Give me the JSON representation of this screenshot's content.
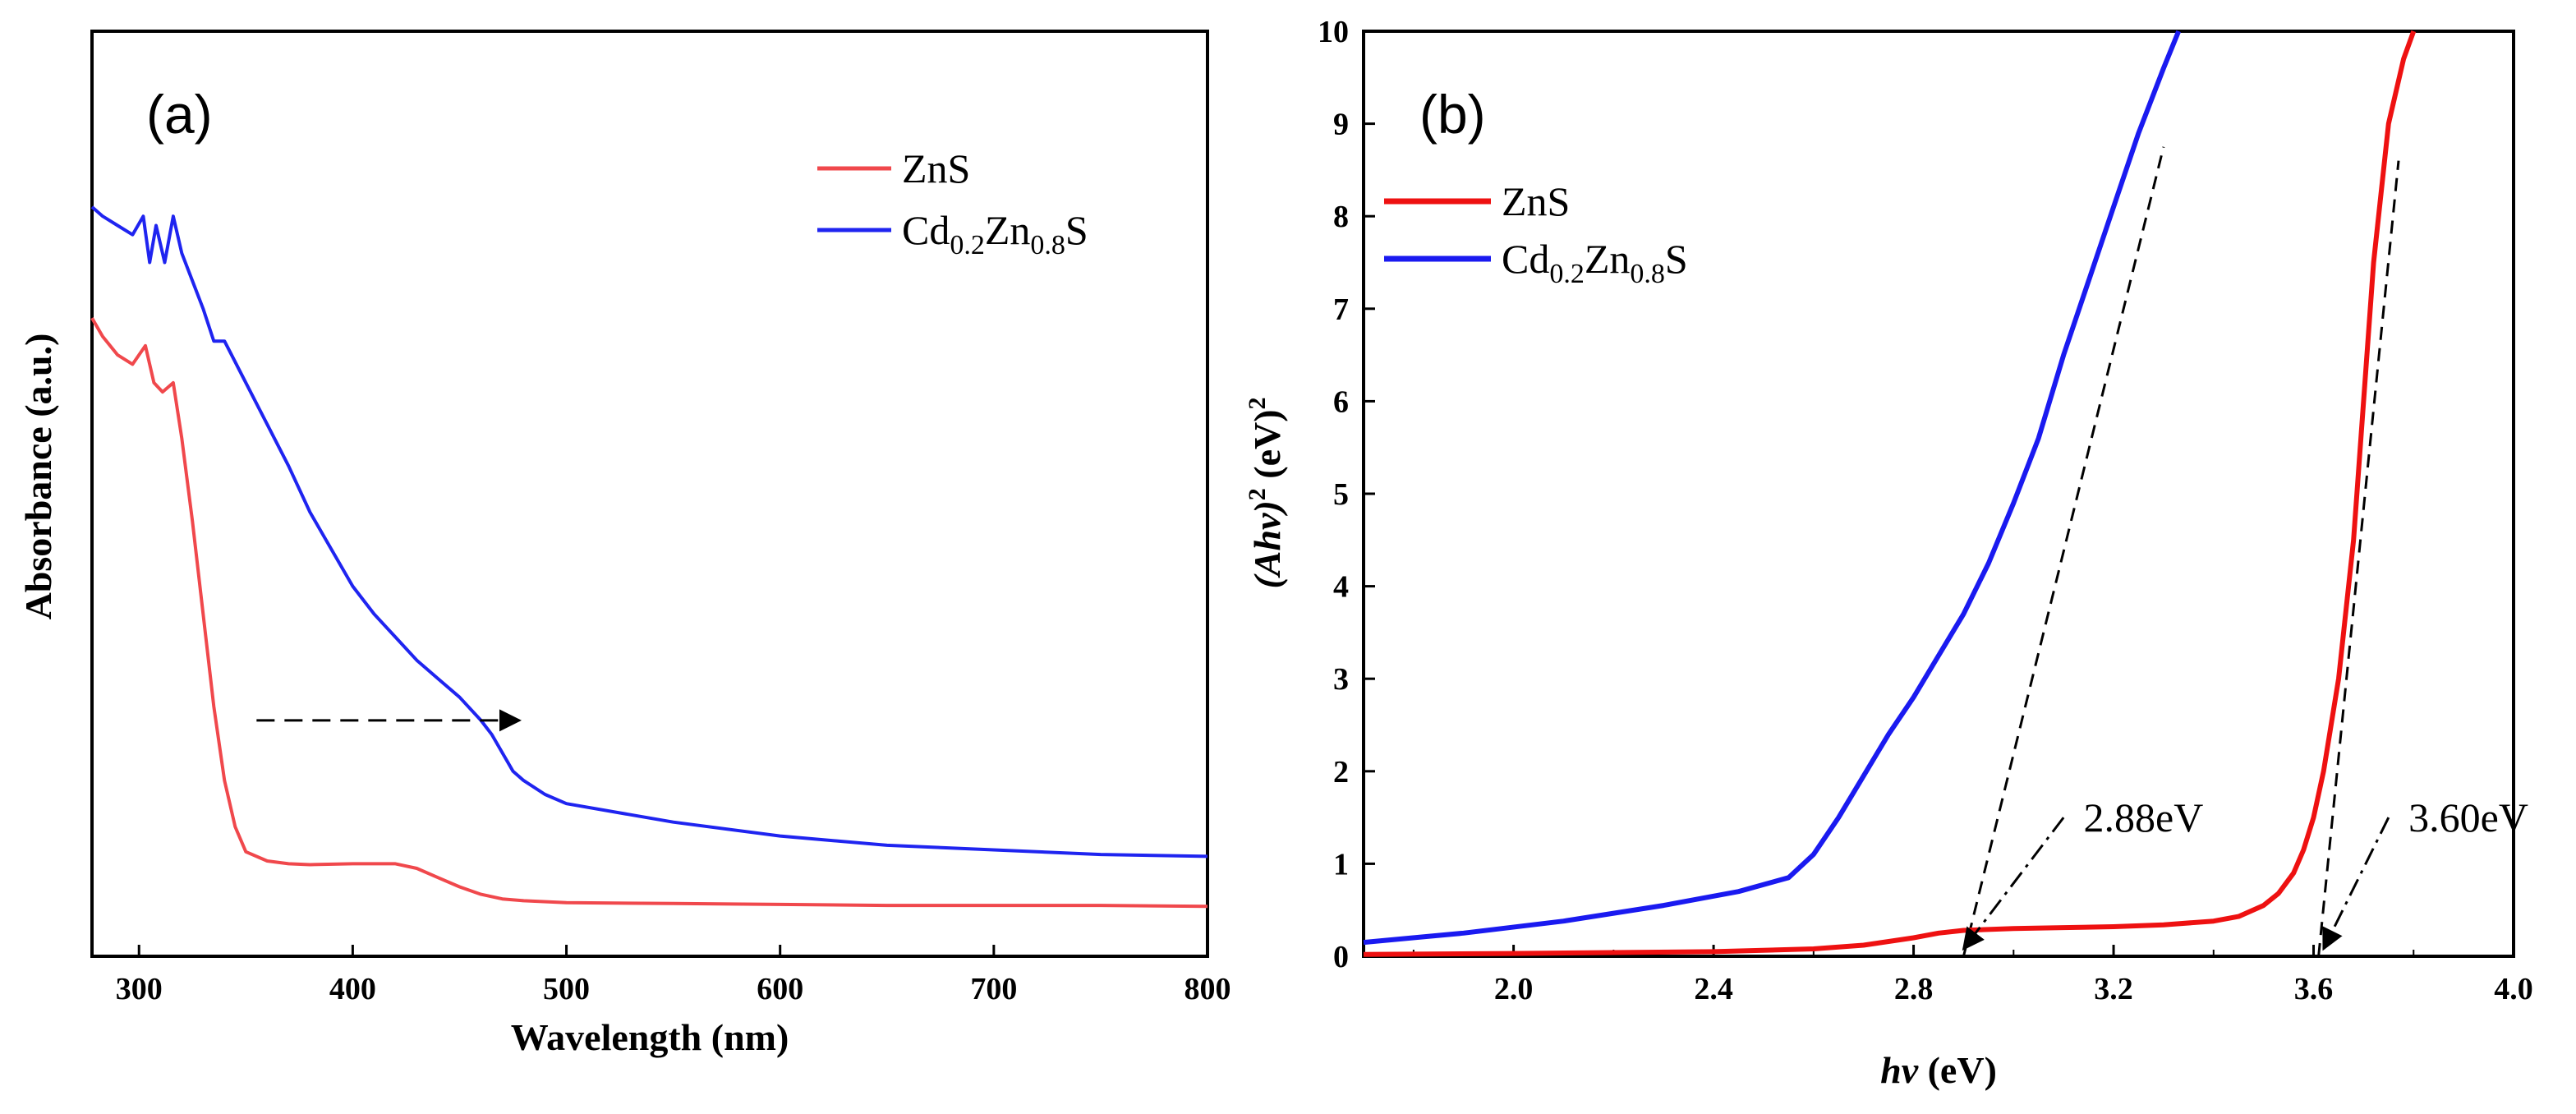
{
  "chart_data": [
    {
      "panel_label": "(a)",
      "type": "line",
      "title": "",
      "xlabel": "Wavelength (nm)",
      "ylabel": "Absorbance (a.u.)",
      "xlim": [
        278,
        800
      ],
      "ylim": [
        0,
        1.0
      ],
      "x_ticks": [
        "300",
        "400",
        "500",
        "600",
        "700",
        "800"
      ],
      "y_ticks_shown": false,
      "legend_position": "top-right",
      "series": [
        {
          "name": "ZnS",
          "color": "#f0484c",
          "x": [
            278,
            283,
            290,
            297,
            303,
            307,
            311,
            316,
            320,
            325,
            330,
            335,
            340,
            345,
            350,
            360,
            370,
            380,
            400,
            420,
            430,
            440,
            450,
            460,
            470,
            480,
            500,
            550,
            600,
            650,
            700,
            750,
            800
          ],
          "y": [
            0.69,
            0.67,
            0.65,
            0.64,
            0.66,
            0.62,
            0.61,
            0.62,
            0.56,
            0.47,
            0.37,
            0.27,
            0.19,
            0.14,
            0.113,
            0.103,
            0.1,
            0.099,
            0.1,
            0.1,
            0.095,
            0.085,
            0.075,
            0.067,
            0.062,
            0.06,
            0.058,
            0.057,
            0.056,
            0.055,
            0.055,
            0.055,
            0.054
          ]
        },
        {
          "name": "Cd0.2Zn0.8S",
          "color": "#1f24f0",
          "x": [
            278,
            283,
            290,
            297,
            302,
            305,
            308,
            312,
            316,
            320,
            325,
            330,
            335,
            340,
            350,
            360,
            370,
            380,
            390,
            400,
            410,
            420,
            430,
            440,
            450,
            460,
            465,
            470,
            475,
            480,
            490,
            500,
            550,
            600,
            650,
            700,
            750,
            800
          ],
          "y": [
            0.81,
            0.8,
            0.79,
            0.78,
            0.8,
            0.75,
            0.79,
            0.75,
            0.8,
            0.76,
            0.73,
            0.7,
            0.665,
            0.665,
            0.62,
            0.575,
            0.53,
            0.48,
            0.44,
            0.4,
            0.37,
            0.345,
            0.32,
            0.3,
            0.28,
            0.255,
            0.24,
            0.22,
            0.2,
            0.19,
            0.175,
            0.165,
            0.145,
            0.13,
            0.12,
            0.115,
            0.11,
            0.108
          ]
        }
      ],
      "annotations": [
        {
          "type": "dashed-arrow",
          "from": [
            355,
            0.255
          ],
          "to": [
            478,
            0.255
          ]
        }
      ]
    },
    {
      "panel_label": "(b)",
      "type": "line",
      "title": "",
      "xlabel_main": "hv",
      "xlabel_unit": " (eV)",
      "ylabel_main": "(Ahv)",
      "ylabel_unit": " (eV)",
      "ylabel_superscript": "2",
      "xlim": [
        1.7,
        4.0
      ],
      "ylim": [
        0,
        10
      ],
      "x_ticks": [
        "2.0",
        "2.4",
        "2.8",
        "3.2",
        "3.6",
        "4.0"
      ],
      "y_ticks": [
        "0",
        "1",
        "2",
        "3",
        "4",
        "5",
        "6",
        "7",
        "8",
        "9",
        "10"
      ],
      "legend_position": "upper-left",
      "series": [
        {
          "name": "ZnS",
          "color": "#ee1111",
          "x": [
            1.7,
            2.0,
            2.4,
            2.6,
            2.7,
            2.8,
            2.85,
            2.9,
            3.0,
            3.1,
            3.2,
            3.3,
            3.4,
            3.45,
            3.5,
            3.53,
            3.56,
            3.58,
            3.6,
            3.62,
            3.65,
            3.68,
            3.7,
            3.72,
            3.75,
            3.78,
            3.8
          ],
          "y": [
            0.02,
            0.03,
            0.05,
            0.08,
            0.12,
            0.2,
            0.25,
            0.28,
            0.3,
            0.31,
            0.32,
            0.34,
            0.38,
            0.43,
            0.55,
            0.68,
            0.9,
            1.15,
            1.5,
            2.0,
            3.0,
            4.5,
            6.0,
            7.5,
            9.0,
            9.7,
            10.0
          ]
        },
        {
          "name": "Cd0.2Zn0.8S",
          "color": "#1a1af0",
          "x": [
            1.7,
            1.9,
            2.1,
            2.3,
            2.45,
            2.55,
            2.6,
            2.65,
            2.7,
            2.75,
            2.8,
            2.85,
            2.9,
            2.95,
            3.0,
            3.05,
            3.1,
            3.15,
            3.2,
            3.25,
            3.3,
            3.33
          ],
          "y": [
            0.15,
            0.25,
            0.38,
            0.55,
            0.7,
            0.85,
            1.1,
            1.5,
            1.95,
            2.4,
            2.8,
            3.25,
            3.7,
            4.25,
            4.9,
            5.6,
            6.5,
            7.3,
            8.1,
            8.9,
            9.6,
            10.0
          ]
        }
      ],
      "fit_lines": [
        {
          "from": [
            2.9,
            0.0
          ],
          "to": [
            3.3,
            8.75
          ]
        },
        {
          "from": [
            3.61,
            0.0
          ],
          "to": [
            3.77,
            8.6
          ]
        }
      ],
      "annotations": [
        {
          "type": "dashdot-arrow",
          "from": [
            3.1,
            1.5
          ],
          "to": [
            2.9,
            0.08
          ],
          "label": "2.88eV",
          "label_at": [
            3.14,
            1.5
          ]
        },
        {
          "type": "dashdot-arrow",
          "from": [
            3.75,
            1.5
          ],
          "to": [
            3.62,
            0.08
          ],
          "label": "3.60eV",
          "label_at": [
            3.79,
            1.5
          ]
        }
      ]
    }
  ]
}
